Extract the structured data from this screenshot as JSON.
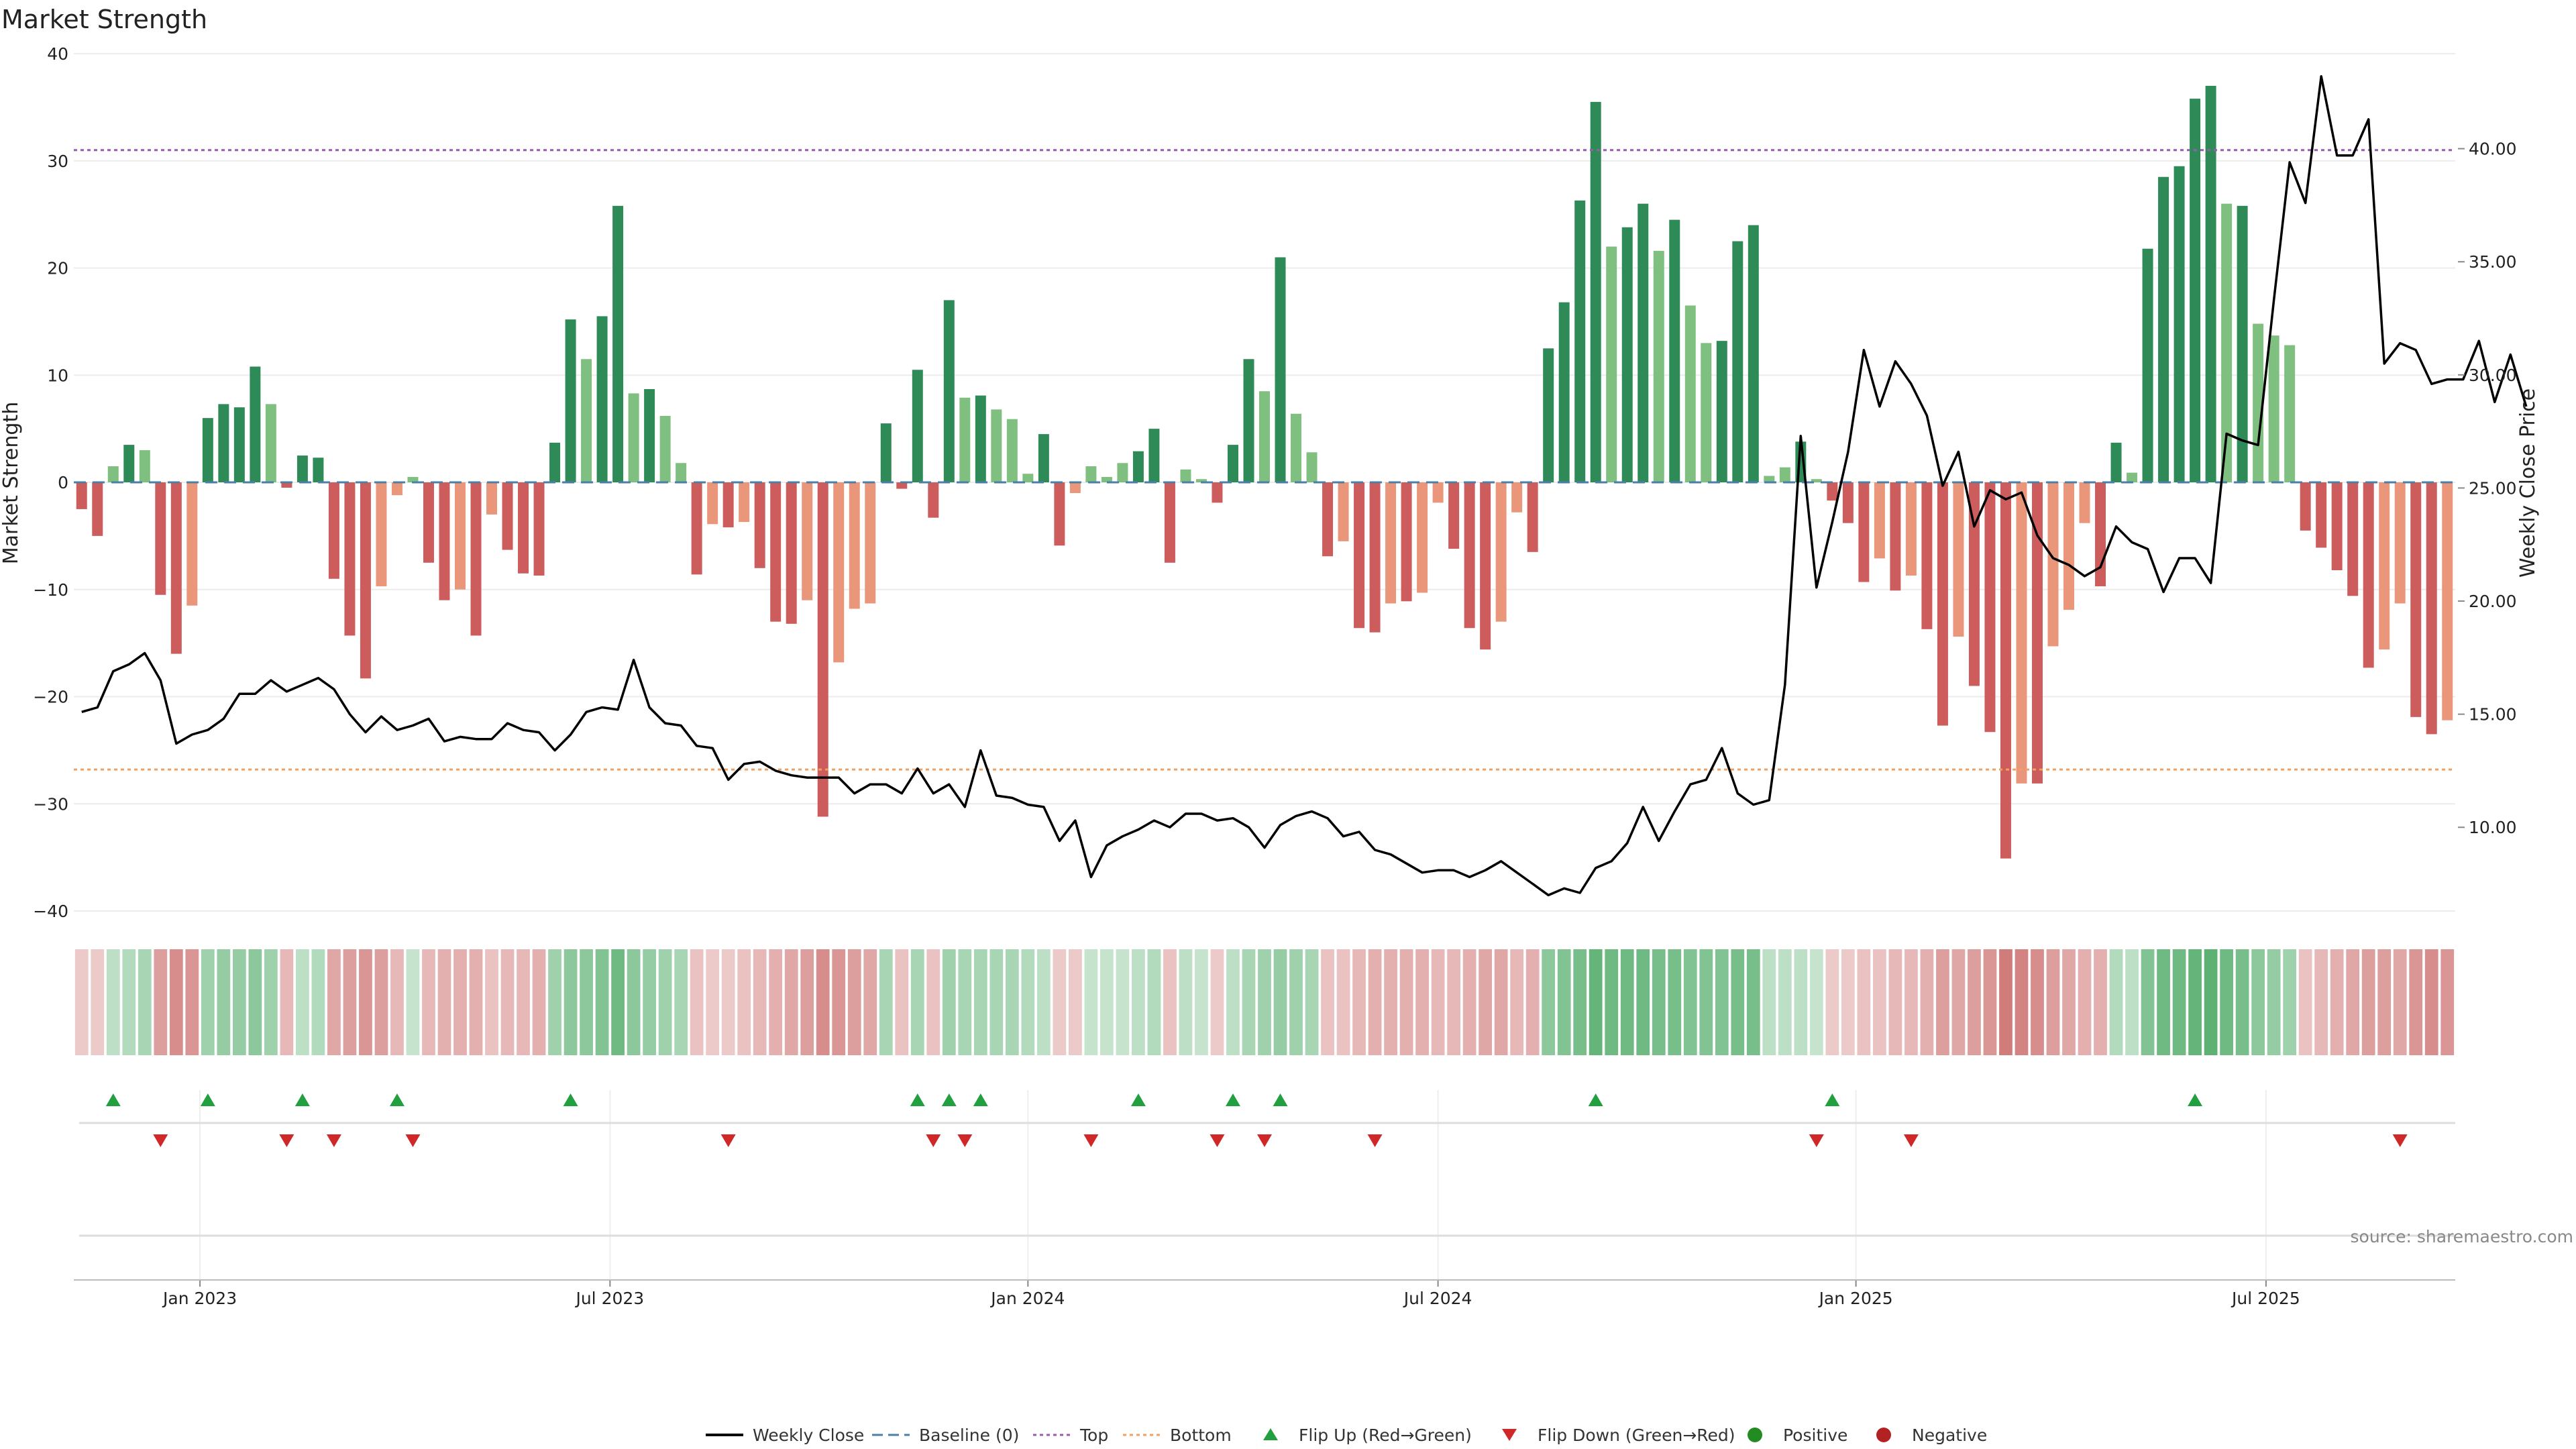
{
  "chart_data": {
    "type": "bar",
    "title": "Market Strength",
    "ylabel_left": "Market Strength",
    "ylabel_right": "Weekly Close Price",
    "ylim_left": [
      -40,
      40
    ],
    "ylim_right": [
      6.3,
      44.2
    ],
    "left_ticks": [
      "40",
      "30",
      "20",
      "10",
      "0",
      "−10",
      "−20",
      "−30",
      "−40"
    ],
    "left_tick_values": [
      40,
      30,
      20,
      10,
      0,
      -10,
      -20,
      -30,
      -40
    ],
    "right_ticks": [
      "40.00",
      "35.00",
      "30.00",
      "25.00",
      "20.00",
      "15.00",
      "10.00"
    ],
    "right_tick_values": [
      40,
      35,
      30,
      25,
      20,
      15,
      10
    ],
    "x_ticks": [
      "Jan 2023",
      "Jul 2023",
      "Jan 2024",
      "Jul 2024",
      "Jan 2025",
      "Jul 2025"
    ],
    "x_tick_weeks": [
      8,
      34,
      60.5,
      86.5,
      113,
      139
    ],
    "top_line": 31,
    "bottom_line": -26.8,
    "source": "source: sharemaestro.com",
    "legend": [
      "Weekly Close",
      "Baseline (0)",
      "Top",
      "Bottom",
      "Flip Up (Red→Green)",
      "Flip Down (Green→Red)",
      "Positive",
      "Negative"
    ],
    "colors": {
      "strong_up": "#2e8b57",
      "weak_up": "#7fbf7f",
      "strong_down": "#cd5c5c",
      "weak_down": "#e9967a",
      "price": "#000000",
      "baseline": "#4a7fa8",
      "top": "#9b59b6",
      "bottom": "#f0a060",
      "flip_up": "#22a040",
      "flip_down": "#d02828",
      "positive": "#228b22",
      "negative": "#b22222"
    },
    "strength": [
      -2.5,
      -5,
      1.5,
      3.5,
      3,
      -10.5,
      -16,
      -11.5,
      6,
      7.3,
      7,
      10.8,
      7.3,
      -0.5,
      2.5,
      2.3,
      -9,
      -14.3,
      -18.3,
      -9.7,
      -1.2,
      0.5,
      -7.5,
      -11,
      -10,
      -14.3,
      -3,
      -6.3,
      -8.5,
      -8.7,
      3.7,
      15.2,
      11.5,
      15.5,
      25.8,
      8.3,
      8.7,
      6.2,
      1.8,
      -8.6,
      -3.9,
      -4.2,
      -3.7,
      -8,
      -13,
      -13.2,
      -11,
      -31.2,
      -16.8,
      -11.8,
      -11.3,
      5.5,
      -0.6,
      10.5,
      -3.3,
      17,
      7.9,
      8.1,
      6.8,
      5.9,
      0.8,
      4.5,
      -5.9,
      -1,
      1.5,
      0.5,
      1.8,
      2.9,
      5,
      -7.5,
      1.2,
      0.3,
      -1.9,
      3.5,
      11.5,
      8.5,
      21,
      6.4,
      2.8,
      -6.9,
      -5.5,
      -13.6,
      -14,
      -11.3,
      -11.1,
      -10.3,
      -1.9,
      -6.2,
      -13.6,
      -15.6,
      -13,
      -2.8,
      -6.5,
      12.5,
      16.8,
      26.3,
      35.5,
      22,
      23.8,
      26,
      21.6,
      24.5,
      16.5,
      13,
      13.2,
      22.5,
      24,
      0.6,
      1.4,
      3.8,
      0.3,
      -1.7,
      -3.8,
      -9.3,
      -7.1,
      -10.1,
      -8.7,
      -13.7,
      -22.7,
      -14.4,
      -19,
      -23.3,
      -35.1,
      -28.1,
      -28.1,
      -15.3,
      -11.9,
      -3.8,
      -9.7,
      3.7,
      0.9,
      21.8,
      28.5,
      29.5,
      35.8,
      37,
      26,
      25.8,
      14.8,
      13.7,
      12.8,
      -4.5,
      -6.1,
      -8.2,
      -10.6,
      -17.3,
      -15.6,
      -11.3,
      -21.9,
      -23.5,
      -22.2
    ],
    "price": [
      15.1,
      15.3,
      16.9,
      17.2,
      17.7,
      16.5,
      13.7,
      14.1,
      14.3,
      14.8,
      15.9,
      15.9,
      16.5,
      16,
      16.3,
      16.6,
      16.1,
      15,
      14.2,
      14.9,
      14.3,
      14.5,
      14.8,
      13.8,
      14,
      13.9,
      13.9,
      14.6,
      14.3,
      14.2,
      13.4,
      14.1,
      15.1,
      15.3,
      15.2,
      17.4,
      15.3,
      14.6,
      14.5,
      13.6,
      13.5,
      12.1,
      12.8,
      12.9,
      12.5,
      12.3,
      12.2,
      12.2,
      12.2,
      11.5,
      11.9,
      11.9,
      11.5,
      12.6,
      11.5,
      11.9,
      10.9,
      13.4,
      11.4,
      11.3,
      11,
      10.9,
      9.4,
      10.3,
      7.8,
      9.2,
      9.6,
      9.9,
      10.3,
      10,
      10.6,
      10.6,
      10.3,
      10.4,
      10,
      9.1,
      10.1,
      10.5,
      10.7,
      10.4,
      9.6,
      9.8,
      9,
      8.8,
      8.4,
      8,
      8.1,
      8.1,
      7.8,
      8.1,
      8.5,
      8,
      7.5,
      7,
      7.3,
      7.1,
      8.2,
      8.5,
      9.3,
      10.9,
      9.4,
      10.7,
      11.9,
      12.1,
      13.5,
      11.5,
      11,
      11.2,
      16.3,
      27.3,
      20.6,
      23.5,
      26.6,
      31.1,
      28.6,
      30.6,
      29.6,
      28.2,
      25.1,
      26.6,
      23.3,
      24.9,
      24.5,
      24.8,
      22.9,
      21.9,
      21.6,
      21.1,
      21.5,
      23.3,
      22.6,
      22.3,
      20.4,
      21.9,
      21.9,
      20.8,
      27.4,
      27.1,
      26.9,
      33.3,
      39.4,
      37.6,
      43.2,
      39.7,
      39.7,
      41.3,
      30.5,
      31.4,
      31.1,
      29.6,
      29.8,
      29.8,
      31.5,
      28.8,
      30.9,
      28.6
    ],
    "heat_opacity": [
      0.3,
      0.3,
      0.35,
      0.4,
      0.45,
      0.55,
      0.65,
      0.6,
      0.5,
      0.55,
      0.55,
      0.6,
      0.5,
      0.4,
      0.35,
      0.4,
      0.5,
      0.55,
      0.6,
      0.55,
      0.4,
      0.3,
      0.4,
      0.45,
      0.45,
      0.45,
      0.35,
      0.4,
      0.4,
      0.45,
      0.5,
      0.6,
      0.6,
      0.65,
      0.75,
      0.6,
      0.55,
      0.5,
      0.45,
      0.35,
      0.3,
      0.3,
      0.35,
      0.4,
      0.45,
      0.5,
      0.55,
      0.65,
      0.6,
      0.55,
      0.5,
      0.45,
      0.35,
      0.45,
      0.35,
      0.5,
      0.45,
      0.45,
      0.45,
      0.45,
      0.4,
      0.35,
      0.3,
      0.3,
      0.3,
      0.3,
      0.3,
      0.35,
      0.4,
      0.35,
      0.35,
      0.3,
      0.3,
      0.35,
      0.45,
      0.5,
      0.55,
      0.5,
      0.45,
      0.35,
      0.35,
      0.4,
      0.45,
      0.45,
      0.45,
      0.45,
      0.4,
      0.4,
      0.45,
      0.5,
      0.5,
      0.4,
      0.45,
      0.6,
      0.65,
      0.7,
      0.8,
      0.75,
      0.75,
      0.75,
      0.7,
      0.7,
      0.65,
      0.65,
      0.65,
      0.7,
      0.7,
      0.35,
      0.35,
      0.35,
      0.3,
      0.3,
      0.3,
      0.35,
      0.35,
      0.4,
      0.4,
      0.45,
      0.55,
      0.5,
      0.55,
      0.6,
      0.75,
      0.7,
      0.65,
      0.55,
      0.5,
      0.45,
      0.45,
      0.4,
      0.35,
      0.65,
      0.75,
      0.75,
      0.8,
      0.85,
      0.75,
      0.7,
      0.6,
      0.55,
      0.5,
      0.35,
      0.4,
      0.45,
      0.5,
      0.55,
      0.55,
      0.5,
      0.6,
      0.65,
      0.6
    ],
    "flip_up_weeks": [
      2,
      8,
      14,
      20,
      31,
      53,
      55,
      57,
      67,
      73,
      76,
      96,
      111,
      134
    ],
    "flip_down_weeks": [
      5,
      13,
      16,
      21,
      41,
      54,
      56,
      64,
      72,
      75,
      82,
      110,
      116,
      147
    ]
  }
}
